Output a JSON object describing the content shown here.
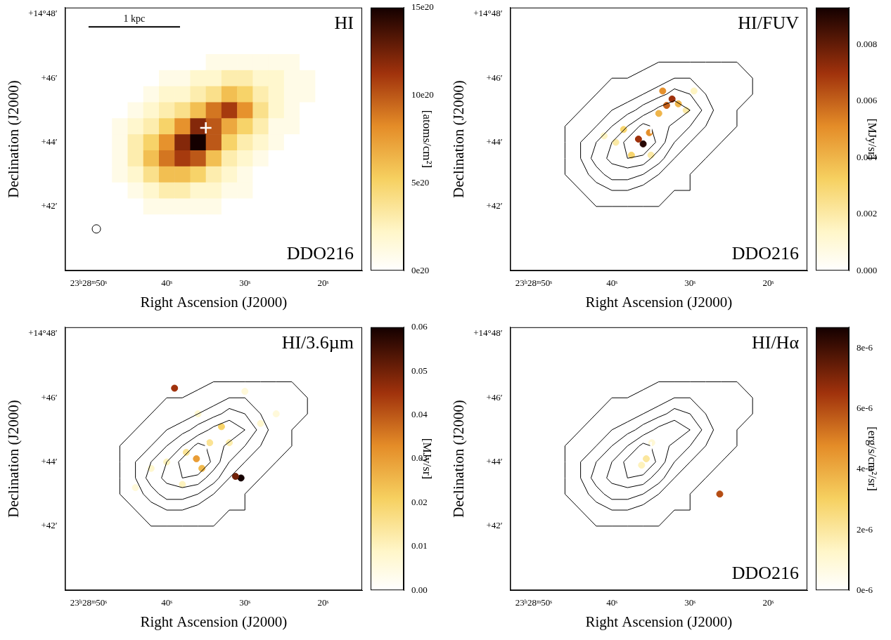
{
  "chart_data": [
    {
      "type": "heatmap",
      "title": "HI",
      "label": "DDO216",
      "x_label": "Right Ascension (J2000)",
      "y_label": "Declination (J2000)",
      "xlim": [
        53,
        15
      ],
      "xticks": [
        {
          "value": 50,
          "label": "23ʰ28ᵐ50ˢ"
        },
        {
          "value": 40,
          "label": "40ˢ"
        },
        {
          "value": 30,
          "label": "30ˢ"
        },
        {
          "value": 20,
          "label": "20ˢ"
        }
      ],
      "ylim": [
        40,
        48.2
      ],
      "yticks": [
        {
          "value": 42,
          "label": "+42′"
        },
        {
          "value": 44,
          "label": "+44′"
        },
        {
          "value": 46,
          "label": "+46′"
        },
        {
          "value": 48,
          "label": "+14°48′"
        }
      ],
      "colorbar": {
        "range": [
          0,
          1.5e+21
        ],
        "label": "[atoms/cm²]",
        "ticks": [
          {
            "value": 0,
            "label": "0e20"
          },
          {
            "value": 5e+20,
            "label": "5e20"
          },
          {
            "value": 1e+21,
            "label": "10e20"
          },
          {
            "value": 1.5e+21,
            "label": "15e20"
          }
        ]
      },
      "heatmap": {
        "x": [
          48,
          46,
          44,
          42,
          40,
          38,
          36,
          34,
          32,
          30,
          28,
          26,
          24,
          22,
          20
        ],
        "y": [
          47.0,
          46.5,
          46.0,
          45.5,
          45.0,
          44.5,
          44.0,
          43.5,
          43.0,
          42.5,
          42.0,
          41.5
        ],
        "values": [
          [
            0,
            0,
            0,
            0,
            0,
            0,
            0,
            0,
            0,
            0,
            0,
            0,
            0,
            0,
            0
          ],
          [
            0,
            0,
            0,
            0,
            0,
            0,
            0,
            1e+20,
            1e+20,
            1e+20,
            1e+20,
            1e+20,
            1e+20,
            0,
            0
          ],
          [
            0,
            0,
            0,
            0,
            1e+20,
            1e+20,
            2e+20,
            2e+20,
            3e+20,
            3e+20,
            2e+20,
            2e+20,
            1e+20,
            1e+20,
            0
          ],
          [
            0,
            0,
            0,
            1e+20,
            2e+20,
            2e+20,
            3e+20,
            4e+20,
            6e+20,
            5e+20,
            3e+20,
            2e+20,
            1e+20,
            1e+20,
            0
          ],
          [
            0,
            0,
            1e+20,
            2e+20,
            3e+20,
            4e+20,
            6e+20,
            9e+20,
            1.1e+21,
            8e+20,
            4e+20,
            2e+20,
            1e+20,
            0,
            0
          ],
          [
            0,
            1e+20,
            2e+20,
            3e+20,
            5e+20,
            8e+20,
            1.2e+21,
            1e+21,
            7e+20,
            5e+20,
            3e+20,
            1e+20,
            1e+20,
            0,
            0
          ],
          [
            0,
            1e+20,
            3e+20,
            5e+20,
            8e+20,
            1.2e+21,
            1.5e+21,
            1e+21,
            5e+20,
            3e+20,
            2e+20,
            1e+20,
            0,
            0,
            0
          ],
          [
            0,
            1e+20,
            3e+20,
            6e+20,
            9e+20,
            1.1e+21,
            1e+21,
            6e+20,
            3e+20,
            2e+20,
            1e+20,
            0,
            0,
            0,
            0
          ],
          [
            0,
            1e+20,
            2e+20,
            4e+20,
            6e+20,
            6e+20,
            5e+20,
            3e+20,
            2e+20,
            1e+20,
            0,
            0,
            0,
            0,
            0
          ],
          [
            0,
            0,
            1e+20,
            2e+20,
            3e+20,
            3e+20,
            2e+20,
            2e+20,
            1e+20,
            1e+20,
            0,
            0,
            0,
            0,
            0
          ],
          [
            0,
            0,
            0,
            1e+20,
            1e+20,
            1e+20,
            1e+20,
            1e+20,
            0,
            0,
            0,
            0,
            0,
            0,
            0
          ],
          [
            0,
            0,
            0,
            0,
            0,
            0,
            0,
            0,
            0,
            0,
            0,
            0,
            0,
            0,
            0
          ]
        ]
      },
      "center": [
        35,
        44.45
      ],
      "scale_bar": {
        "label": "1 kpc",
        "x": [
          50,
          38.3
        ],
        "y": 47.6
      },
      "beam": [
        49,
        41.3
      ]
    },
    {
      "type": "scatter",
      "title": "HI/FUV",
      "label": "DDO216",
      "x_label": "Right Ascension (J2000)",
      "y_label": "Declination (J2000)",
      "xlim": [
        53,
        15
      ],
      "xticks": [
        {
          "value": 50,
          "label": "23ʰ28ᵐ50ˢ"
        },
        {
          "value": 40,
          "label": "40ˢ"
        },
        {
          "value": 30,
          "label": "30ˢ"
        },
        {
          "value": 20,
          "label": "20ˢ"
        }
      ],
      "ylim": [
        40,
        48.2
      ],
      "yticks": [
        {
          "value": 42,
          "label": "+42′"
        },
        {
          "value": 44,
          "label": "+44′"
        },
        {
          "value": 46,
          "label": "+46′"
        },
        {
          "value": 48,
          "label": "+14°48′"
        }
      ],
      "colorbar": {
        "range": [
          0,
          0.0093
        ],
        "label": "[MJy/sr]",
        "ticks": [
          {
            "value": 0,
            "label": "0.000"
          },
          {
            "value": 0.002,
            "label": "0.002"
          },
          {
            "value": 0.004,
            "label": "0.004"
          },
          {
            "value": 0.006,
            "label": "0.006"
          },
          {
            "value": 0.008,
            "label": "0.008"
          }
        ]
      },
      "contours": {
        "levels": [
          1e+20,
          3e+20,
          5e+20,
          8e+20,
          1.1e+21
        ]
      },
      "sources": {
        "x": [
          36.0,
          36.6,
          35.2,
          33.0,
          32.3,
          31.5,
          34.0,
          38.5,
          37.5,
          39.5,
          33.5,
          30.5,
          35.0,
          41.0,
          29.5
        ],
        "y": [
          43.95,
          44.1,
          44.3,
          45.15,
          45.35,
          45.2,
          44.9,
          44.4,
          43.6,
          44.0,
          45.6,
          45.0,
          43.6,
          44.2,
          45.6
        ],
        "values": [
          0.009,
          0.007,
          0.005,
          0.006,
          0.007,
          0.004,
          0.004,
          0.003,
          0.003,
          0.002,
          0.005,
          0.002,
          0.002,
          0.0015,
          0.0015
        ]
      },
      "center": [
        35,
        44.45
      ]
    },
    {
      "type": "scatter",
      "title": "HI/3.6µm",
      "x_label": "Right Ascension (J2000)",
      "y_label": "Declination (J2000)",
      "xlim": [
        53,
        15
      ],
      "xticks": [
        {
          "value": 50,
          "label": "23ʰ28ᵐ50ˢ"
        },
        {
          "value": 40,
          "label": "40ˢ"
        },
        {
          "value": 30,
          "label": "30ˢ"
        },
        {
          "value": 20,
          "label": "20ˢ"
        }
      ],
      "ylim": [
        40,
        48.2
      ],
      "yticks": [
        {
          "value": 42,
          "label": "+42′"
        },
        {
          "value": 44,
          "label": "+44′"
        },
        {
          "value": 46,
          "label": "+46′"
        },
        {
          "value": 48,
          "label": "+14°48′"
        }
      ],
      "colorbar": {
        "range": [
          0,
          0.06
        ],
        "label": "[MJy/sr]",
        "ticks": [
          {
            "value": 0,
            "label": "0.00"
          },
          {
            "value": 0.01,
            "label": "0.01"
          },
          {
            "value": 0.02,
            "label": "0.02"
          },
          {
            "value": 0.03,
            "label": "0.03"
          },
          {
            "value": 0.04,
            "label": "0.04"
          },
          {
            "value": 0.05,
            "label": "0.05"
          },
          {
            "value": 0.06,
            "label": "0.06"
          }
        ]
      },
      "contours": {
        "levels": [
          1e+20,
          3e+20,
          5e+20,
          8e+20,
          1.1e+21
        ]
      },
      "sources": {
        "x": [
          30.5,
          31.2,
          39.0,
          36.2,
          35.5,
          33.0,
          37.5,
          40.0,
          32.0,
          34.5,
          42.0,
          28.0,
          26.0,
          38.0,
          44.0,
          30.0,
          36.0
        ],
        "y": [
          43.5,
          43.55,
          46.3,
          44.1,
          43.8,
          45.1,
          44.3,
          44.0,
          44.6,
          44.6,
          43.8,
          45.2,
          45.5,
          43.3,
          43.2,
          46.2,
          45.5
        ],
        "values": [
          0.06,
          0.05,
          0.045,
          0.03,
          0.025,
          0.02,
          0.015,
          0.01,
          0.012,
          0.015,
          0.008,
          0.008,
          0.006,
          0.01,
          0.006,
          0.006,
          0.008
        ]
      },
      "center": [
        35,
        44.45
      ]
    },
    {
      "type": "scatter",
      "title": "HI/Hα",
      "label": "DDO216",
      "x_label": "Right Ascension (J2000)",
      "y_label": "Declination (J2000)",
      "xlim": [
        53,
        15
      ],
      "xticks": [
        {
          "value": 50,
          "label": "23ʰ28ᵐ50ˢ"
        },
        {
          "value": 40,
          "label": "40ˢ"
        },
        {
          "value": 30,
          "label": "30ˢ"
        },
        {
          "value": 20,
          "label": "20ˢ"
        }
      ],
      "ylim": [
        40,
        48.2
      ],
      "yticks": [
        {
          "value": 42,
          "label": "+42′"
        },
        {
          "value": 44,
          "label": "+44′"
        },
        {
          "value": 46,
          "label": "+46′"
        },
        {
          "value": 48,
          "label": "+14°48′"
        }
      ],
      "colorbar": {
        "range": [
          0,
          8.7e-06
        ],
        "label": "[erg/s/cm²/sr]",
        "ticks": [
          {
            "value": 0,
            "label": "0e-6"
          },
          {
            "value": 2e-06,
            "label": "2e-6"
          },
          {
            "value": 4e-06,
            "label": "4e-6"
          },
          {
            "value": 6e-06,
            "label": "6e-6"
          },
          {
            "value": 8e-06,
            "label": "8e-6"
          }
        ]
      },
      "contours": {
        "levels": [
          1e+20,
          3e+20,
          5e+20,
          8e+20,
          1.1e+21
        ]
      },
      "sources": {
        "x": [
          35.6,
          36.2,
          26.2,
          34.9
        ],
        "y": [
          44.1,
          43.9,
          43.0,
          44.6
        ],
        "values": [
          2e-06,
          1.5e-06,
          6e-06,
          1e-06
        ]
      },
      "center": [
        35,
        44.45
      ]
    }
  ]
}
